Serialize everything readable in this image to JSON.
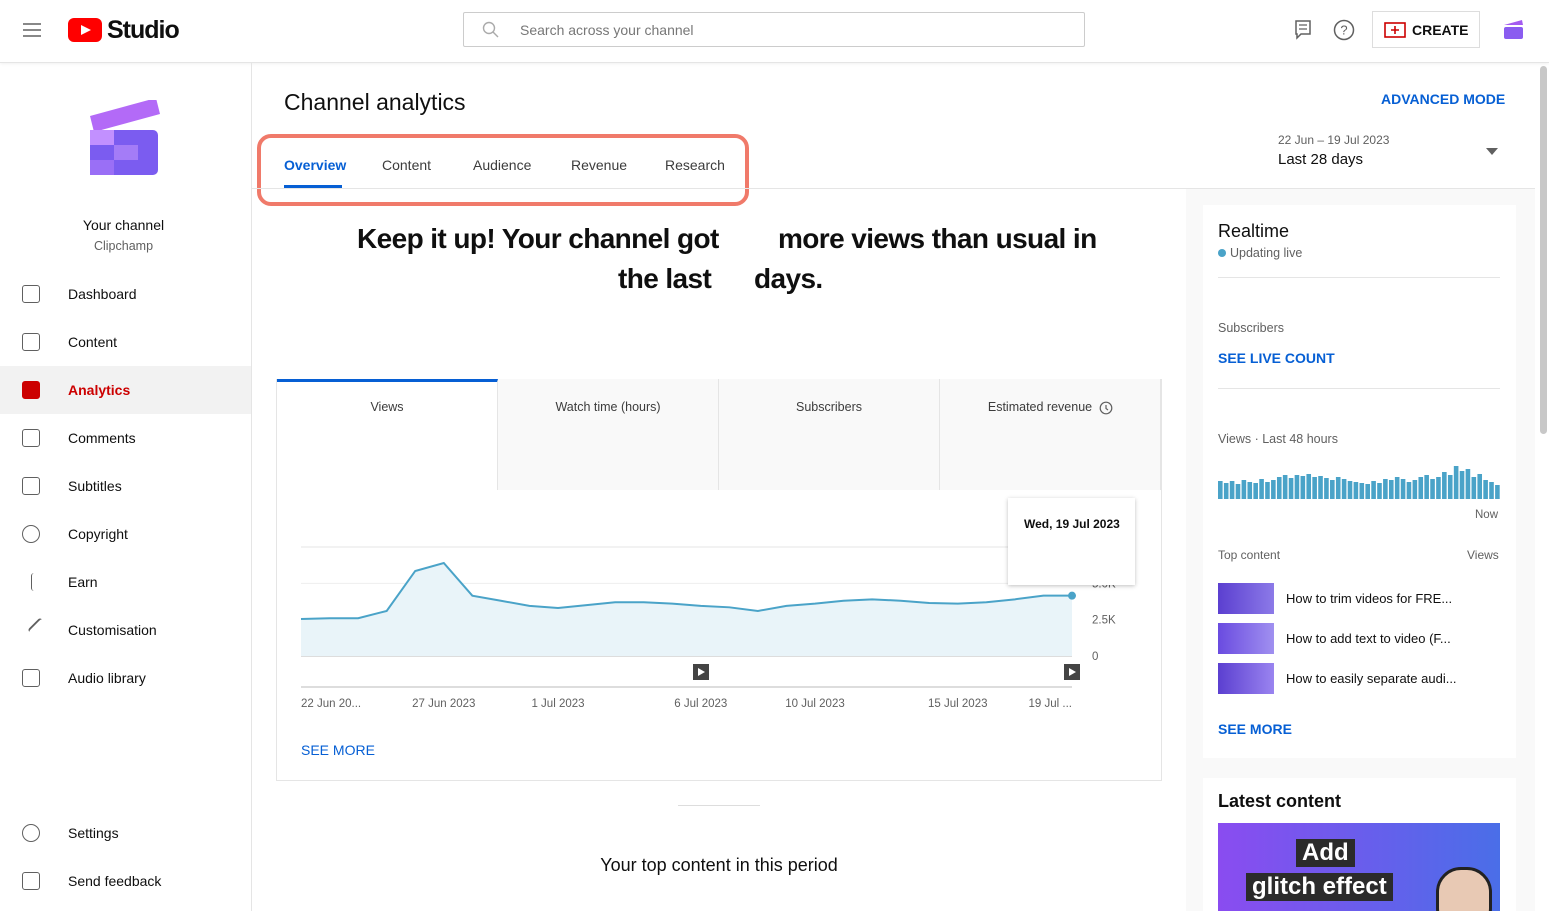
{
  "header": {
    "logo": "Studio",
    "search_placeholder": "Search across your channel",
    "create": "CREATE"
  },
  "sidebar": {
    "channel_title": "Your channel",
    "channel_name": "Clipchamp",
    "nav": [
      "Dashboard",
      "Content",
      "Analytics",
      "Comments",
      "Subtitles",
      "Copyright",
      "Earn",
      "Customisation",
      "Audio library"
    ],
    "bottom_nav": [
      "Settings",
      "Send feedback"
    ]
  },
  "main": {
    "title": "Channel analytics",
    "advanced_mode": "ADVANCED MODE",
    "tabs": [
      "Overview",
      "Content",
      "Audience",
      "Revenue",
      "Research"
    ],
    "date_range": "22 Jun – 19 Jul 2023",
    "period": "Last 28 days",
    "headline": [
      "Keep it up! Your channel got",
      "more views than usual in",
      "the last",
      "days."
    ],
    "metric_tabs": [
      "Views",
      "Watch time (hours)",
      "Subscribers",
      "Estimated revenue"
    ],
    "see_more": "SEE MORE",
    "top_content_heading": "Your top content in this period"
  },
  "chart_data": {
    "type": "line",
    "categories": [
      "22 Jun 20...",
      null,
      null,
      null,
      null,
      "27 Jun 2023",
      null,
      null,
      null,
      "1 Jul 2023",
      null,
      null,
      null,
      null,
      "6 Jul 2023",
      null,
      null,
      null,
      "10 Jul 2023",
      null,
      null,
      null,
      null,
      "15 Jul 2023",
      null,
      null,
      null,
      "19 Jul ..."
    ],
    "values": [
      2550,
      2600,
      2600,
      3100,
      5850,
      6400,
      4150,
      3800,
      3450,
      3300,
      3500,
      3700,
      3700,
      3600,
      3450,
      3350,
      3100,
      3450,
      3600,
      3800,
      3900,
      3800,
      3650,
      3600,
      3700,
      3900,
      4150,
      4150
    ],
    "color": "#4aa3c8",
    "ylim": [
      0,
      7500
    ],
    "yticks": [
      0,
      {
        "value": 2500,
        "label": "2.5K"
      },
      {
        "value": 5000,
        "label": "5.0K"
      }
    ],
    "grid": true,
    "tooltip": "Wed, 19 Jul 2023"
  },
  "realtime": {
    "title": "Realtime",
    "status": "Updating live",
    "subscribers_label": "Subscribers",
    "see_live_count": "SEE LIVE COUNT",
    "views_label": "Views · Last 48 hours",
    "bars": [
      18,
      16,
      18,
      15,
      19,
      17,
      16,
      20,
      17,
      19,
      22,
      24,
      21,
      24,
      23,
      25,
      22,
      23,
      21,
      19,
      22,
      20,
      18,
      17,
      16,
      15,
      18,
      16,
      20,
      19,
      22,
      20,
      17,
      19,
      22,
      24,
      20,
      22,
      27,
      24,
      33,
      28,
      30,
      22,
      25,
      19,
      17,
      14
    ],
    "bars_end_label": "Now",
    "top_content_label": "Top content",
    "views_col": "Views",
    "top_content": [
      "How to trim videos for FRE...",
      "How to add text to video (F...",
      "How to easily separate audi..."
    ],
    "see_more": "SEE MORE"
  },
  "latest": {
    "title": "Latest content",
    "thumb_text": [
      "Add",
      "glitch effect"
    ]
  }
}
